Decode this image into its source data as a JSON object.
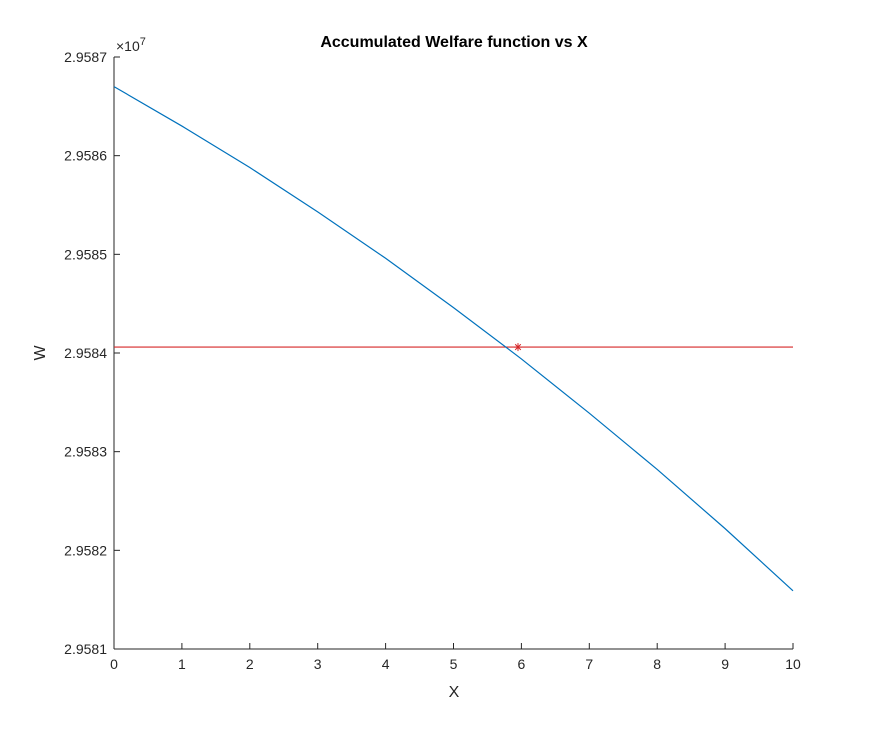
{
  "chart_data": {
    "type": "line",
    "title": "Accumulated Welfare function vs X",
    "xlabel": "X",
    "ylabel": "W",
    "y_exponent_label": "×10",
    "y_exponent_power": "7",
    "xlim": [
      0,
      10
    ],
    "ylim": [
      2.9581,
      2.9587
    ],
    "x_ticks": [
      "0",
      "1",
      "2",
      "3",
      "4",
      "5",
      "6",
      "7",
      "8",
      "9",
      "10"
    ],
    "y_ticks": [
      "2.9581",
      "2.9582",
      "2.9583",
      "2.9584",
      "2.9585",
      "2.9586",
      "2.9587"
    ],
    "grid": false,
    "series": [
      {
        "color": "#0072BD",
        "x": [
          0,
          1,
          2,
          3,
          4,
          5,
          6,
          7,
          8,
          9,
          10
        ],
        "y": [
          2.95867,
          2.95863,
          2.958588,
          2.958543,
          2.958496,
          2.958446,
          2.958394,
          2.958339,
          2.958282,
          2.958222,
          2.958159
        ]
      }
    ],
    "reference_line": {
      "color": "#D62728",
      "y": 2.958406
    },
    "marker": {
      "color": "#D62728",
      "symbol": "*",
      "x": 5.95,
      "y": 2.958406
    }
  }
}
